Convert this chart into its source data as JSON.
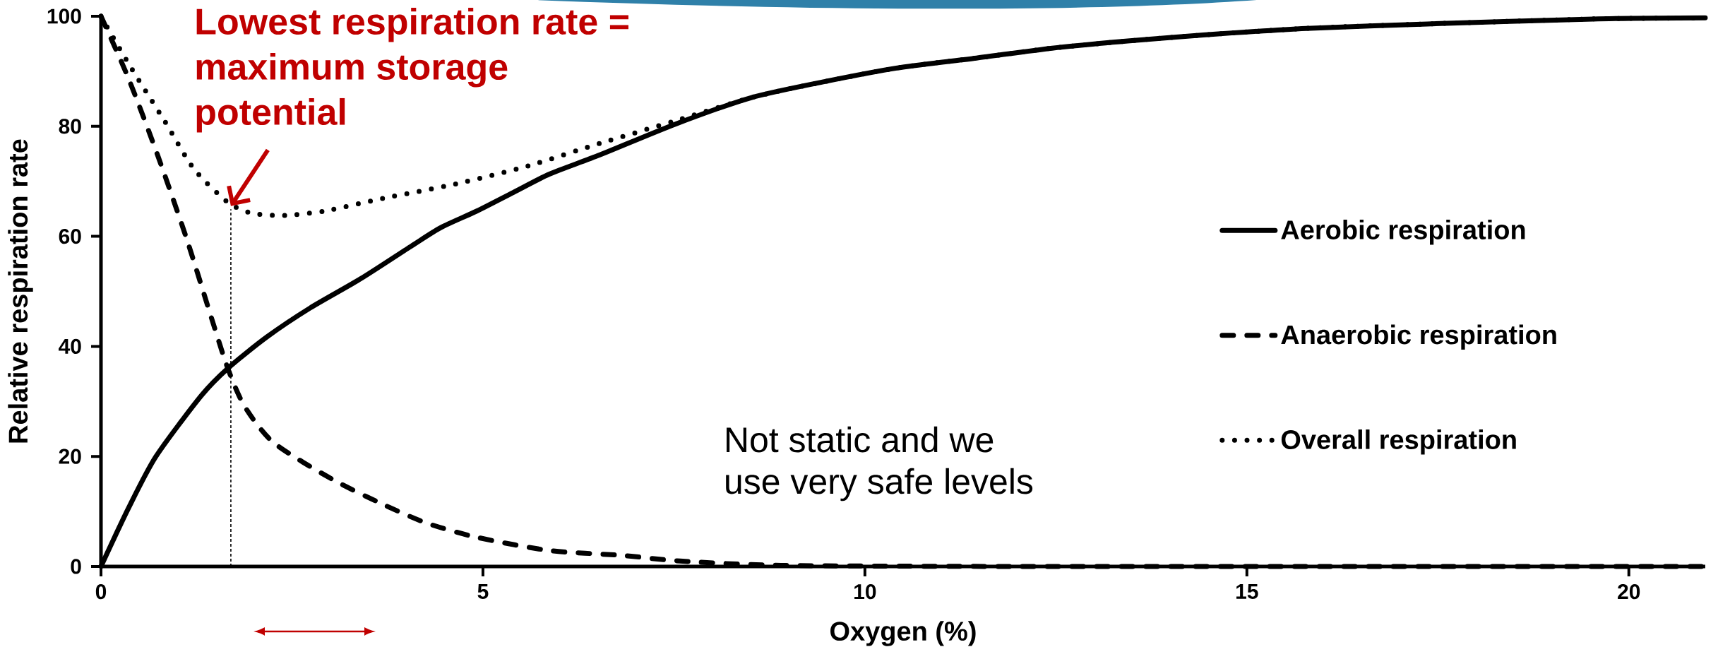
{
  "chart_data": {
    "type": "line",
    "xlabel": "Oxygen (%)",
    "ylabel": "Relative respiration rate",
    "xlim": [
      0,
      21
    ],
    "ylim": [
      0,
      100
    ],
    "xticks": [
      0,
      5,
      10,
      15,
      20
    ],
    "yticks": [
      0,
      20,
      40,
      60,
      80,
      100
    ],
    "legend": "right",
    "series": [
      {
        "name": "Aerobic respiration",
        "color": "#000000",
        "line_style": "solid",
        "x": [
          0,
          0.36,
          0.72,
          1.31,
          1.66,
          2.17,
          2.74,
          3.4,
          4.07,
          4.45,
          4.92,
          5.4,
          5.87,
          6.53,
          7.52,
          8.51,
          9.5,
          10.47,
          11.46,
          12.45,
          13.44,
          14.43,
          15.78,
          17.36,
          19.53,
          21
        ],
        "values": [
          0,
          10.6,
          20,
          31,
          36,
          41.7,
          47,
          52.3,
          58.3,
          61.6,
          64.6,
          68,
          71.3,
          74.8,
          80.4,
          85.2,
          88.2,
          90.7,
          92.4,
          94.2,
          95.5,
          96.6,
          97.8,
          98.6,
          99.5,
          99.7
        ]
      },
      {
        "name": "Anaerobic respiration",
        "color": "#000000",
        "line_style": "dashed",
        "x": [
          0,
          0.36,
          0.74,
          1.12,
          1.45,
          1.66,
          1.88,
          2.26,
          3.02,
          3.69,
          4.26,
          4.92,
          5.87,
          6.83,
          7.58,
          8.9,
          12,
          16,
          21
        ],
        "values": [
          100,
          88.7,
          74.8,
          59.6,
          45,
          36,
          29.1,
          22.5,
          15.9,
          11.3,
          7.9,
          5.3,
          2.9,
          2,
          1,
          0.2,
          0,
          0,
          0
        ]
      },
      {
        "name": "Overall respiration",
        "color": "#000000",
        "line_style": "dotted",
        "x": [
          0,
          0.36,
          0.84,
          1.22,
          1.66,
          1.98,
          2.4,
          2.93,
          3.69,
          4.64,
          5.59,
          6.53,
          7.52,
          8.51,
          9.5,
          10.47,
          11.46,
          12.45,
          13.44,
          14.43,
          15.78,
          17.36,
          19.53,
          21
        ],
        "values": [
          100,
          91.4,
          80.8,
          72.2,
          66.2,
          64.2,
          63.8,
          64.6,
          66.9,
          69.5,
          72.8,
          76.9,
          81,
          85.2,
          88.2,
          90.7,
          92.4,
          94.2,
          95.5,
          96.6,
          97.8,
          98.6,
          99.5,
          99.7
        ]
      }
    ],
    "ref_lines": [
      {
        "axis": "x",
        "value": 1.7,
        "color": "#000000",
        "line_style": "dashed"
      }
    ],
    "annotations": [
      {
        "text": "Lowest respiration rate = maximum storage potential",
        "x": 1.7,
        "y": 65.5
      },
      "Not static and we use very safe levels"
    ]
  }
}
